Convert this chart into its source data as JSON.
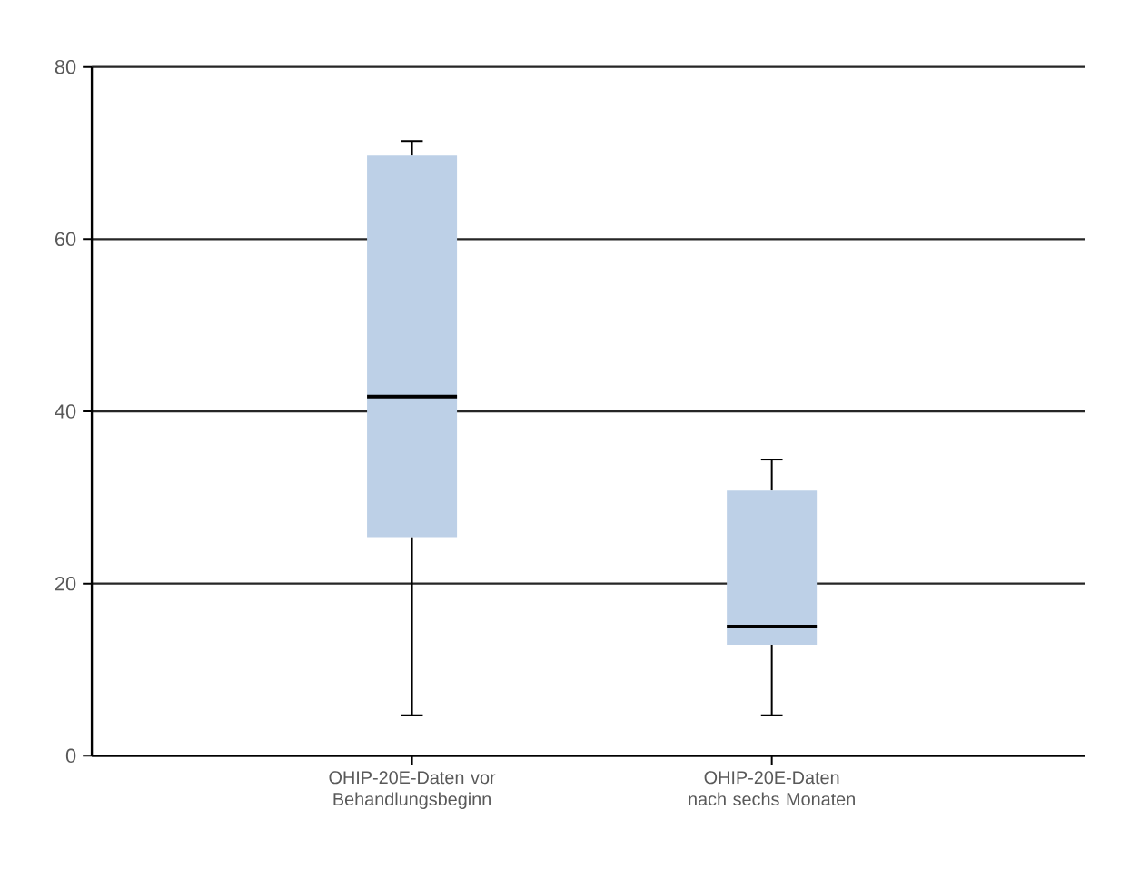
{
  "chart_data": {
    "type": "box",
    "categories": [
      "OHIP-20E-Daten vor Behandlungsbeginn",
      "OHIP-20E-Daten nach sechs Monaten"
    ],
    "series": [
      {
        "color": "#bdd0e7",
        "boxes": [
          {
            "low": 4.7,
            "q1": 25.4,
            "median": 41.7,
            "q3": 69.7,
            "high": 71.4
          },
          {
            "low": 4.7,
            "q1": 12.9,
            "median": 15.0,
            "q3": 30.8,
            "high": 34.4
          }
        ]
      }
    ],
    "ylim": [
      0,
      80
    ],
    "yticks": [
      0,
      20,
      40,
      60,
      80
    ],
    "grid": "y"
  }
}
